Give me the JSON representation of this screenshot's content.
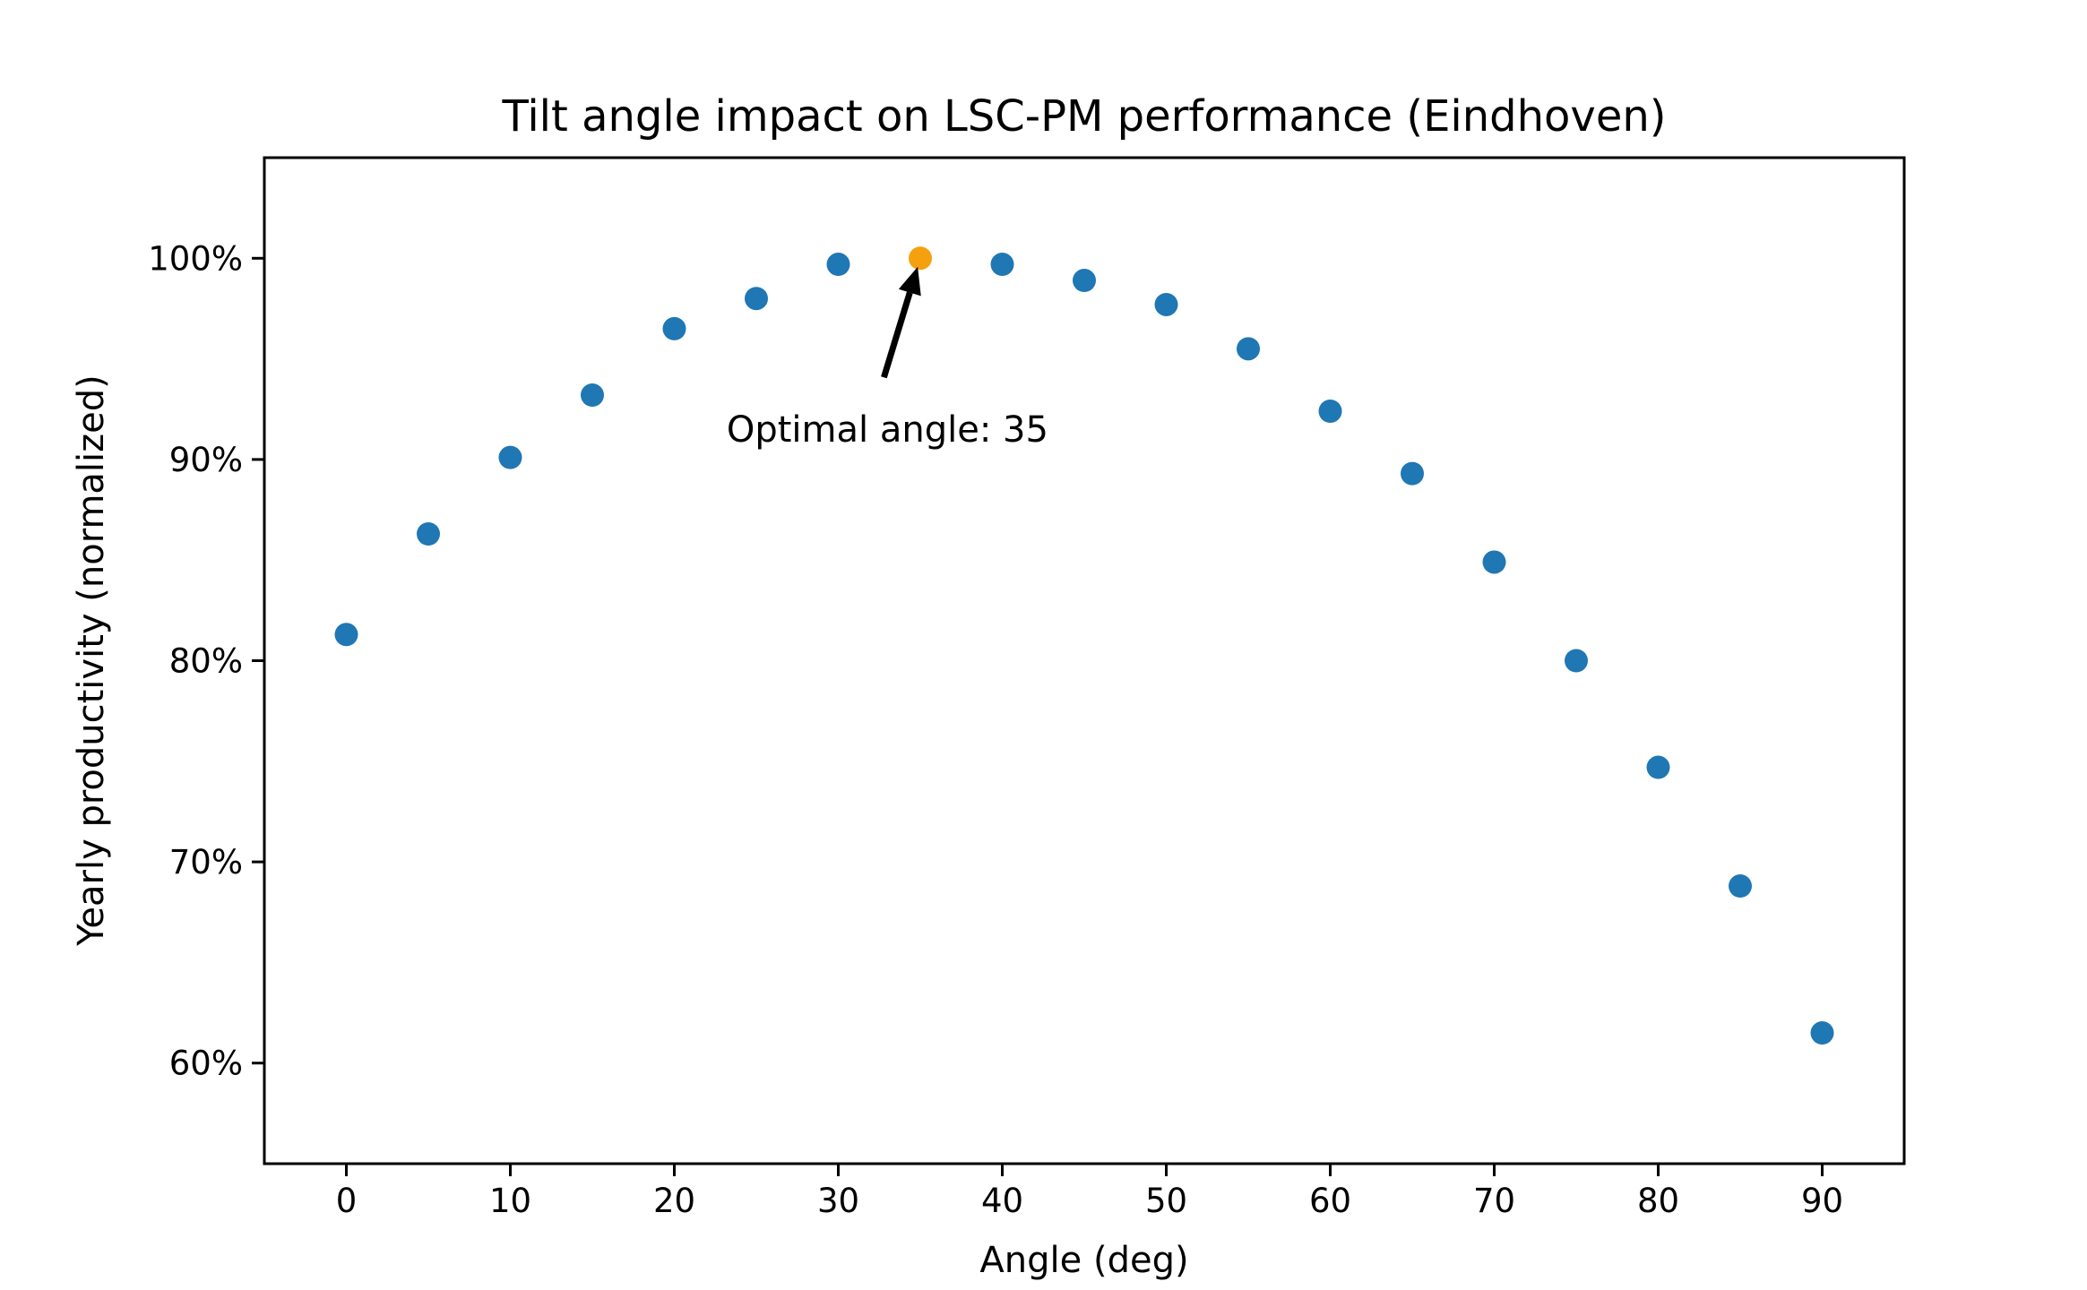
{
  "chart_data": {
    "type": "scatter",
    "title": "Tilt angle impact on LSC-PM performance (Eindhoven)",
    "xlabel": "Angle (deg)",
    "ylabel": "Yearly productivity (normalized)",
    "xlim": [
      -5,
      95
    ],
    "ylim": [
      55,
      105
    ],
    "xticks": [
      0,
      10,
      20,
      30,
      40,
      50,
      60,
      70,
      80,
      90
    ],
    "yticks": [
      60,
      70,
      80,
      90,
      100
    ],
    "ytick_labels": [
      "60%",
      "70%",
      "80%",
      "90%",
      "100%"
    ],
    "grid": false,
    "series": [
      {
        "x": [
          0,
          5,
          10,
          15,
          20,
          25,
          30,
          35,
          40,
          45,
          50,
          55,
          60,
          65,
          70,
          75,
          80,
          85,
          90
        ],
        "y": [
          81.3,
          86.3,
          90.1,
          93.2,
          96.5,
          98.0,
          99.7,
          100.0,
          99.7,
          98.9,
          97.7,
          95.5,
          92.4,
          89.3,
          84.9,
          80.0,
          74.7,
          68.8,
          61.5
        ],
        "color": "#1f77b4"
      }
    ],
    "highlight": {
      "x": 35,
      "y": 100.0,
      "color": "#f5a00f"
    },
    "annotation": {
      "text": "Optimal angle: 35",
      "point": {
        "x": 35,
        "y": 100.0
      },
      "text_at": {
        "x": 33,
        "y": 91.5
      }
    }
  }
}
